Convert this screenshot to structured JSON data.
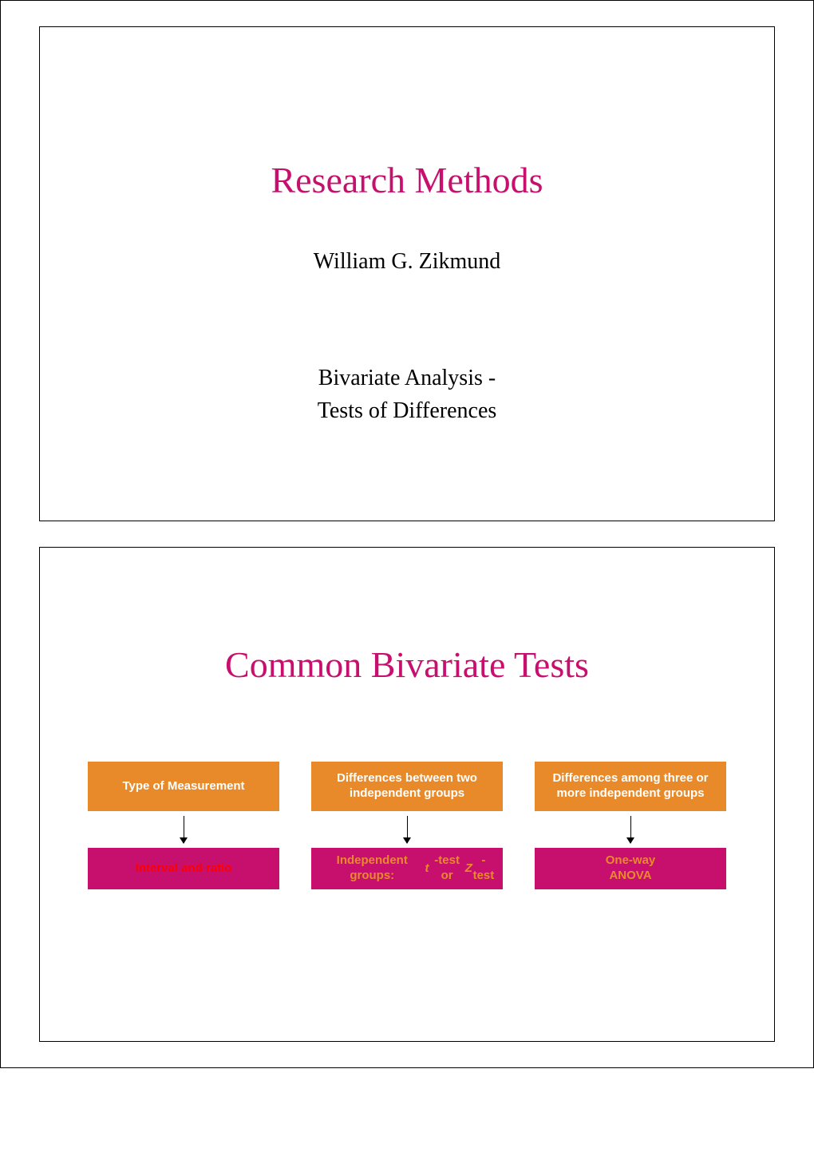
{
  "slide1": {
    "title": "Research Methods",
    "title_color": "#c7106e",
    "author": "William G. Zikmund",
    "subtitle_line1": "Bivariate Analysis -",
    "subtitle_line2": "Tests of Differences"
  },
  "slide2": {
    "title": "Common Bivariate Tests",
    "title_color": "#c7106e",
    "diagram": {
      "top_row_bg": "#e88a2a",
      "top_row_text_color": "#ffffff",
      "bottom_row_bg": "#c7106e",
      "bottom_row_text_colors": [
        "#ff0000",
        "#e88a2a",
        "#e88a2a"
      ],
      "arrow_color": "#000000",
      "columns": [
        {
          "top": "Type of Measurement",
          "bottom": "Interval and ratio"
        },
        {
          "top": "Differences between two independent groups",
          "bottom_html": "Independent groups:<br><span class=\"italic\">t</span>-test or <span class=\"italic\">Z</span>-test"
        },
        {
          "top": "Differences among three or more independent groups",
          "bottom_html": "One-way<br>ANOVA"
        }
      ]
    }
  }
}
